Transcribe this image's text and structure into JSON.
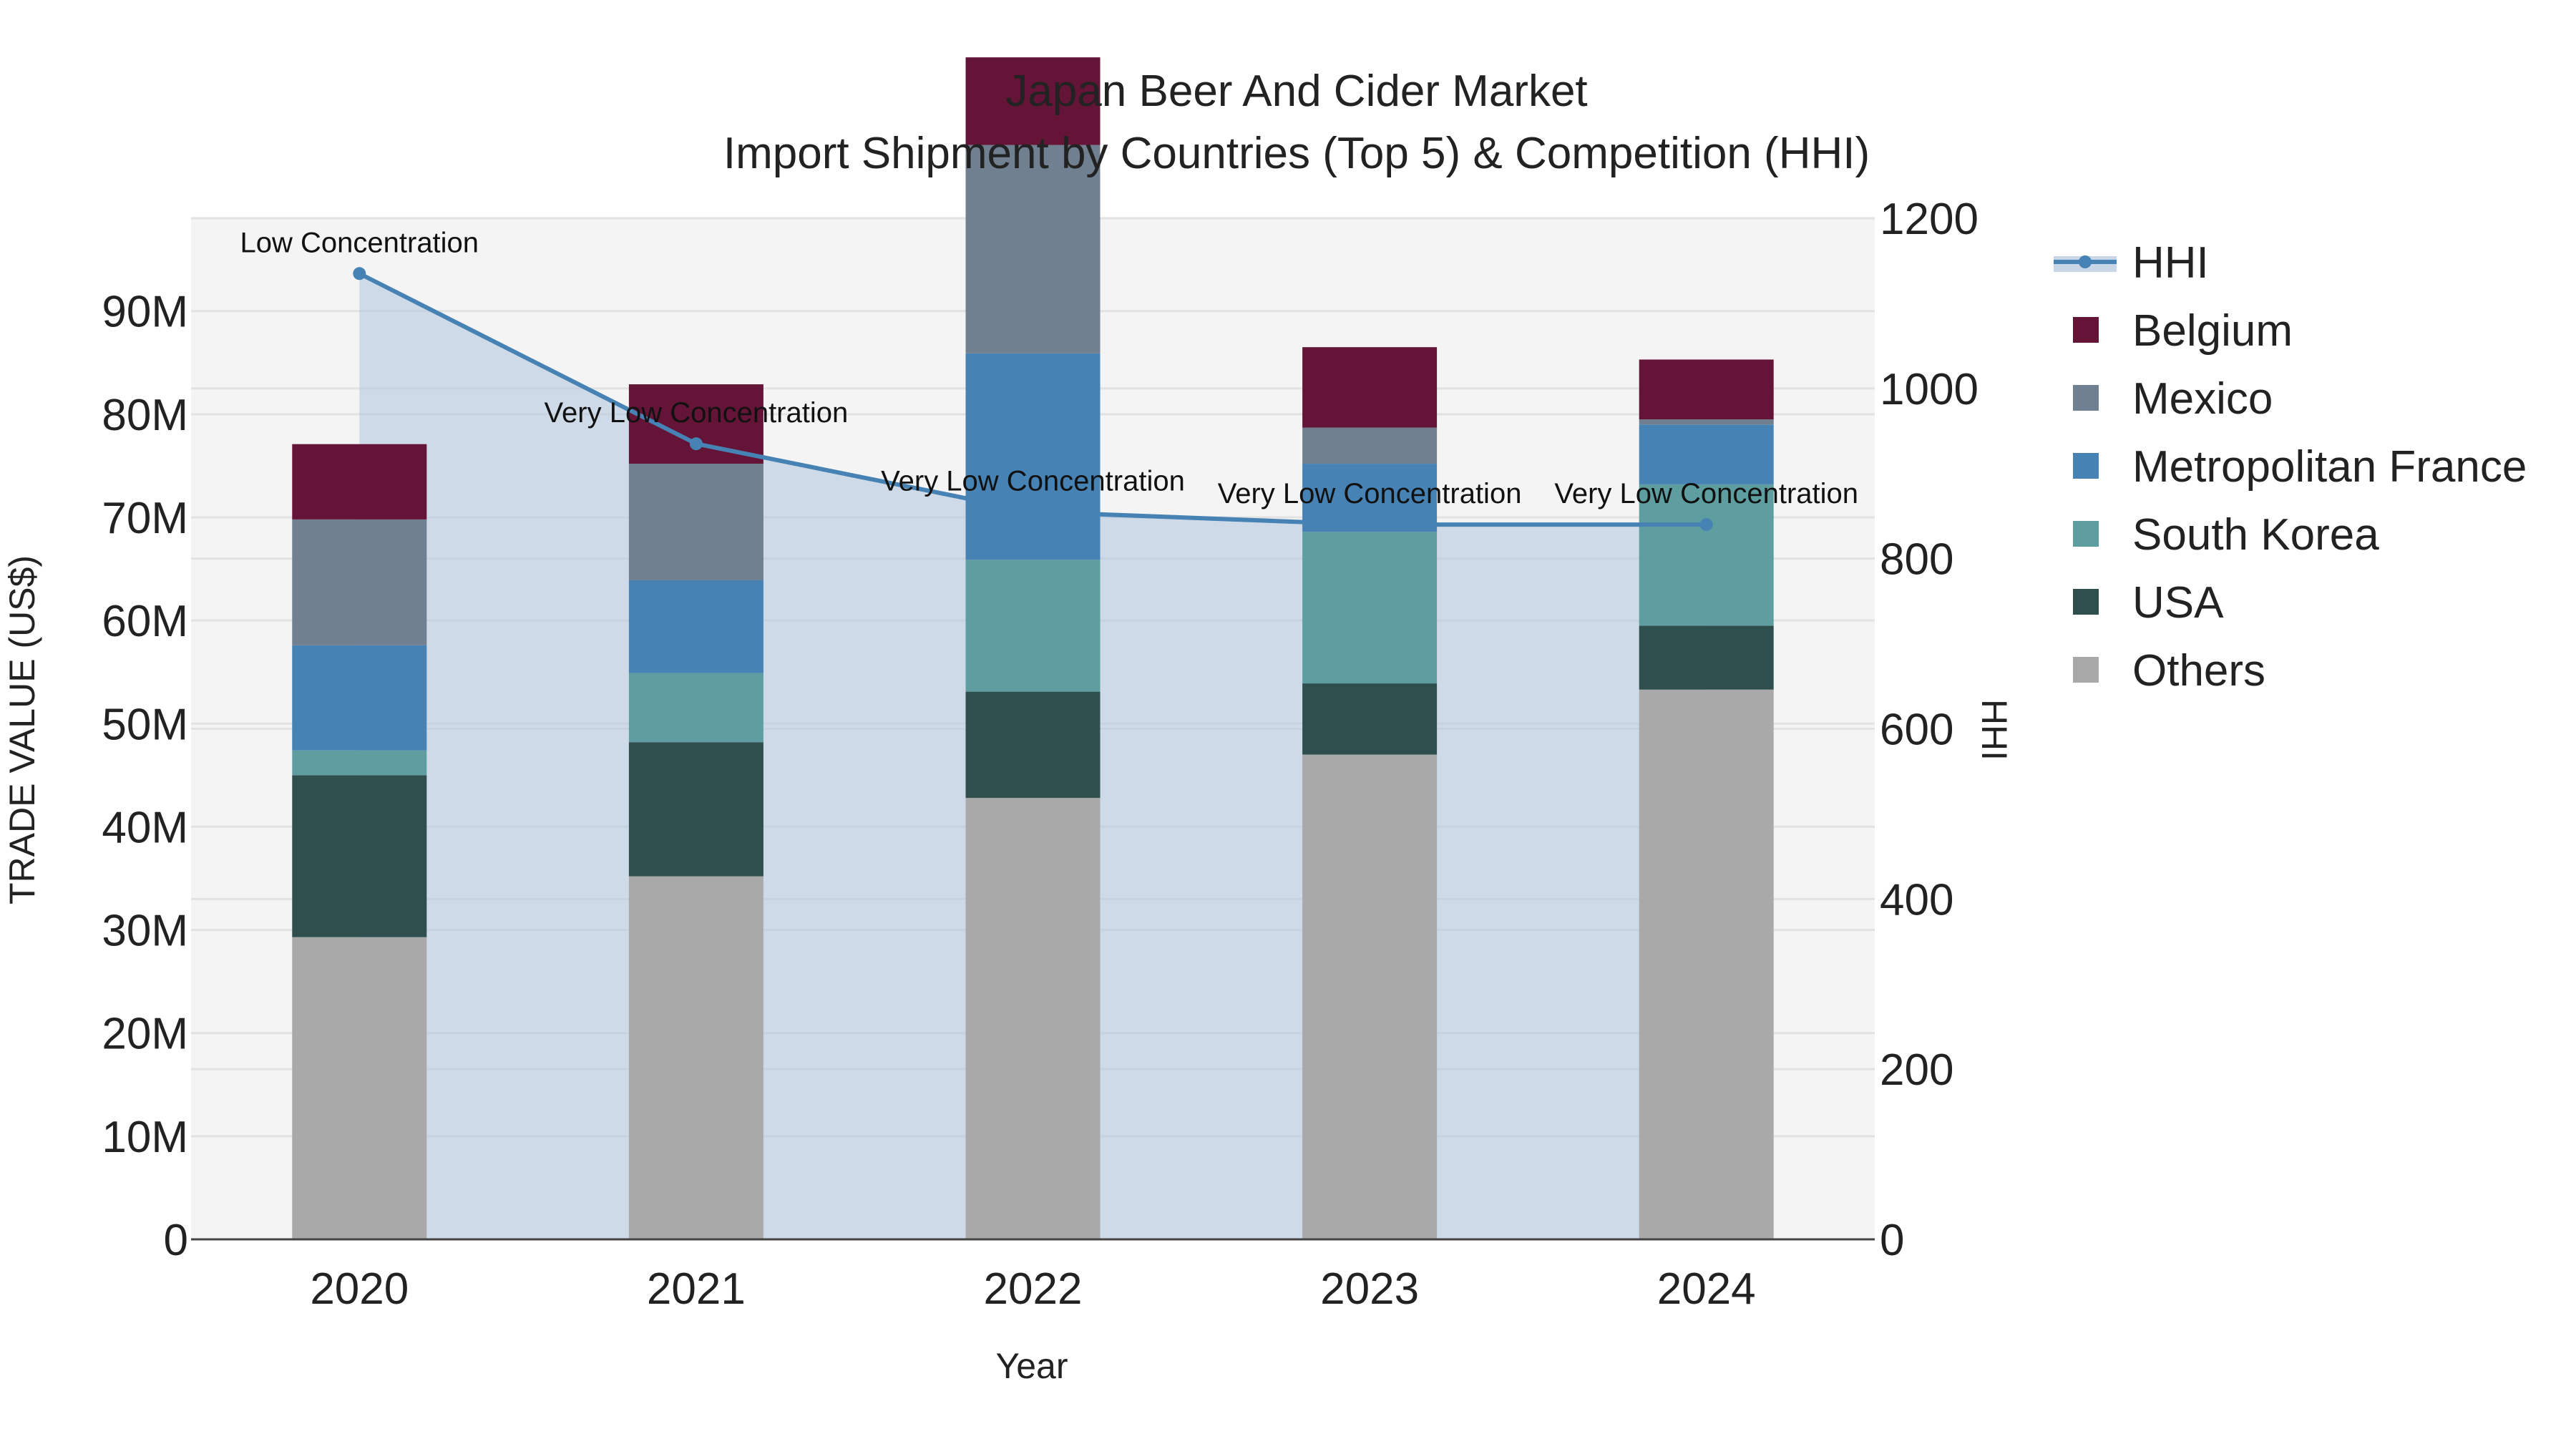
{
  "chart_data": {
    "type": "bar",
    "title": "Japan Beer And Cider Market",
    "subtitle": "Import Shipment by Countries (Top 5) & Competition (HHI)",
    "xlabel": "Year",
    "ylabel": "TRADE VALUE (US$)",
    "y2label": "HHI",
    "categories": [
      "2020",
      "2021",
      "2022",
      "2023",
      "2024"
    ],
    "ylim": [
      0,
      99000000
    ],
    "y2lim": [
      0,
      1200
    ],
    "yticks": [
      {
        "value": 0,
        "label": "0"
      },
      {
        "value": 10000000,
        "label": "10M"
      },
      {
        "value": 20000000,
        "label": "20M"
      },
      {
        "value": 30000000,
        "label": "30M"
      },
      {
        "value": 40000000,
        "label": "40M"
      },
      {
        "value": 50000000,
        "label": "50M"
      },
      {
        "value": 60000000,
        "label": "60M"
      },
      {
        "value": 70000000,
        "label": "70M"
      },
      {
        "value": 80000000,
        "label": "80M"
      },
      {
        "value": 90000000,
        "label": "90M"
      }
    ],
    "y2ticks": [
      {
        "value": 0,
        "label": "0"
      },
      {
        "value": 200,
        "label": "200"
      },
      {
        "value": 400,
        "label": "400"
      },
      {
        "value": 600,
        "label": "600"
      },
      {
        "value": 800,
        "label": "800"
      },
      {
        "value": 1000,
        "label": "1000"
      },
      {
        "value": 1200,
        "label": "1200"
      }
    ],
    "stack_order": [
      "Others",
      "USA",
      "South Korea",
      "Metropolitan France",
      "Mexico",
      "Belgium"
    ],
    "series": [
      {
        "name": "Belgium",
        "color": "#641436",
        "values": [
          7300000,
          7700000,
          8500000,
          7800000,
          5800000
        ]
      },
      {
        "name": "Mexico",
        "color": "#708090",
        "values": [
          12200000,
          11300000,
          20200000,
          3500000,
          500000
        ]
      },
      {
        "name": "Metropolitan France",
        "color": "#4682B4",
        "values": [
          10200000,
          9000000,
          20000000,
          6600000,
          5800000
        ]
      },
      {
        "name": "South Korea",
        "color": "#5F9EA0",
        "values": [
          2400000,
          6700000,
          12800000,
          14700000,
          13700000
        ]
      },
      {
        "name": "USA",
        "color": "#2F4F4F",
        "values": [
          15700000,
          13000000,
          10300000,
          6900000,
          6200000
        ]
      },
      {
        "name": "Others",
        "color": "#A9A9A9",
        "values": [
          29300000,
          35200000,
          42800000,
          47000000,
          53300000
        ]
      }
    ],
    "hhi": {
      "name": "HHI",
      "color": "#4682B4",
      "area_color": "#B0C4DE",
      "values": [
        1135,
        935,
        855,
        840,
        840
      ],
      "annotations": [
        "Low Concentration",
        "Very Low Concentration",
        "Very Low Concentration",
        "Very Low Concentration",
        "Very Low Concentration"
      ]
    },
    "legend": [
      "HHI",
      "Belgium",
      "Mexico",
      "Metropolitan France",
      "South Korea",
      "USA",
      "Others"
    ],
    "legend_position": "right",
    "grid": true
  }
}
